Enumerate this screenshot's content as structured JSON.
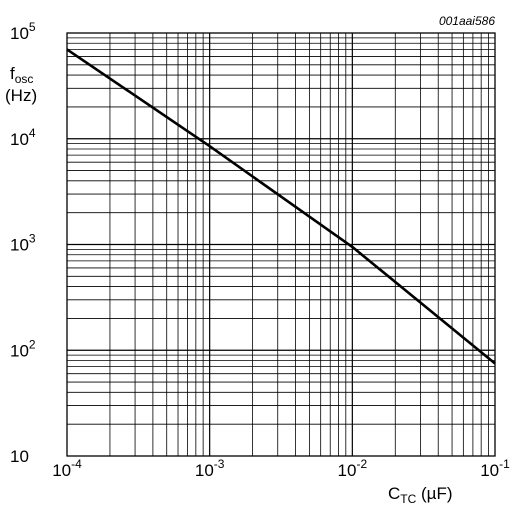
{
  "chart_data": {
    "type": "line",
    "title": "",
    "reference_id": "001aai586",
    "xlabel": {
      "main": "C",
      "sub": "TC",
      "unit": " (µF)"
    },
    "ylabel": {
      "main": "f",
      "sub": "osc",
      "unit": "(Hz)"
    },
    "x_scale": "log",
    "y_scale": "log",
    "xlim": [
      0.0001,
      0.1
    ],
    "ylim": [
      10,
      100000
    ],
    "grid": true,
    "x_ticks": [
      {
        "value": 0.0001,
        "base": "10",
        "exp": "-4"
      },
      {
        "value": 0.001,
        "base": "10",
        "exp": "-3"
      },
      {
        "value": 0.01,
        "base": "10",
        "exp": "-2"
      },
      {
        "value": 0.1,
        "base": "10",
        "exp": "-1"
      }
    ],
    "y_ticks": [
      {
        "value": 10,
        "base": "10",
        "exp": ""
      },
      {
        "value": 100,
        "base": "10",
        "exp": "2"
      },
      {
        "value": 1000,
        "base": "10",
        "exp": "3"
      },
      {
        "value": 10000,
        "base": "10",
        "exp": "4"
      },
      {
        "value": 100000,
        "base": "10",
        "exp": "5"
      }
    ],
    "series": [
      {
        "x": [
          0.0001,
          0.001,
          0.01,
          0.1
        ],
        "y": [
          70000,
          8500,
          950,
          75
        ]
      }
    ],
    "colors": {
      "line": "#000000",
      "grid": "#000000"
    }
  }
}
